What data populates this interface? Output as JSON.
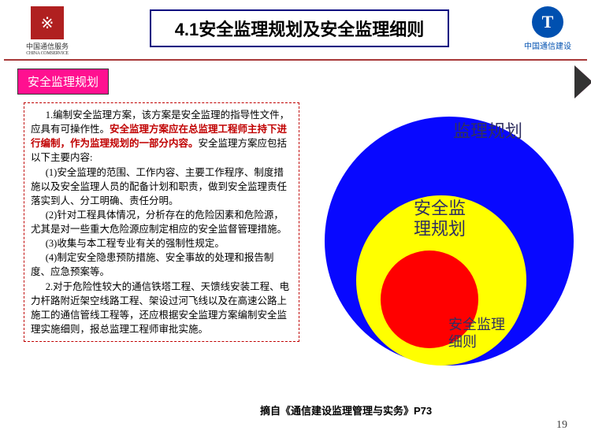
{
  "header": {
    "logo_left": {
      "text_cn": "中国通信服务",
      "text_en": "CHINA COMSERVICE"
    },
    "title": {
      "num": "4.1",
      "text": "安全监理规划及安全监理细则"
    },
    "logo_right": {
      "glyph": "T",
      "text": "中国通信建设"
    }
  },
  "tag": {
    "label": "安全监理规划"
  },
  "body": {
    "p1_a": "1.编制安全监理方案，该方案是安全监理的指导性文件，应具有可操作性。",
    "p1_red": "安全监理方案应在总监理工程师主持下进行编制，作为监理规划的一部分内容。",
    "p1_b": "安全监理方案应包括以下主要内容:",
    "p2": "(1)安全监理的范围、工作内容、主要工作程序、制度措施以及安全监理人员的配备计划和职责，做到安全监理责任落实到人、分工明确、责任分明。",
    "p3": "(2)针对工程具体情况，分析存在的危险因素和危险源，尤其是对一些重大危险源应制定相应的安全监督管理措施。",
    "p4": "(3)收集与本工程专业有关的强制性规定。",
    "p5": "(4)制定安全隐患预防措施、安全事故的处理和报告制度、应急预案等。",
    "p6": "2.对于危险性较大的通信铁塔工程、天馈线安装工程、电力杆路附近架空线路工程、架设过河飞线以及在高速公路上施工的通信管线工程等，还应根据安全监理方案编制安全监理实施细则，报总监理工程师审批实施。"
  },
  "diagram": {
    "outer": {
      "label": "监理规划",
      "color": "#0808ff"
    },
    "mid": {
      "label": "安全监\n理规划",
      "color": "#ffff00"
    },
    "inner": {
      "label": "安全监理\n细则",
      "color": "#ff0000"
    }
  },
  "footer": {
    "cite": "摘自《通信建设监理管理与实务》P73",
    "page": "19"
  },
  "colors": {
    "tag_bg": "#ff1090",
    "title_border": "#000080",
    "divider": "#a83838",
    "dash_border": "#c00000"
  }
}
